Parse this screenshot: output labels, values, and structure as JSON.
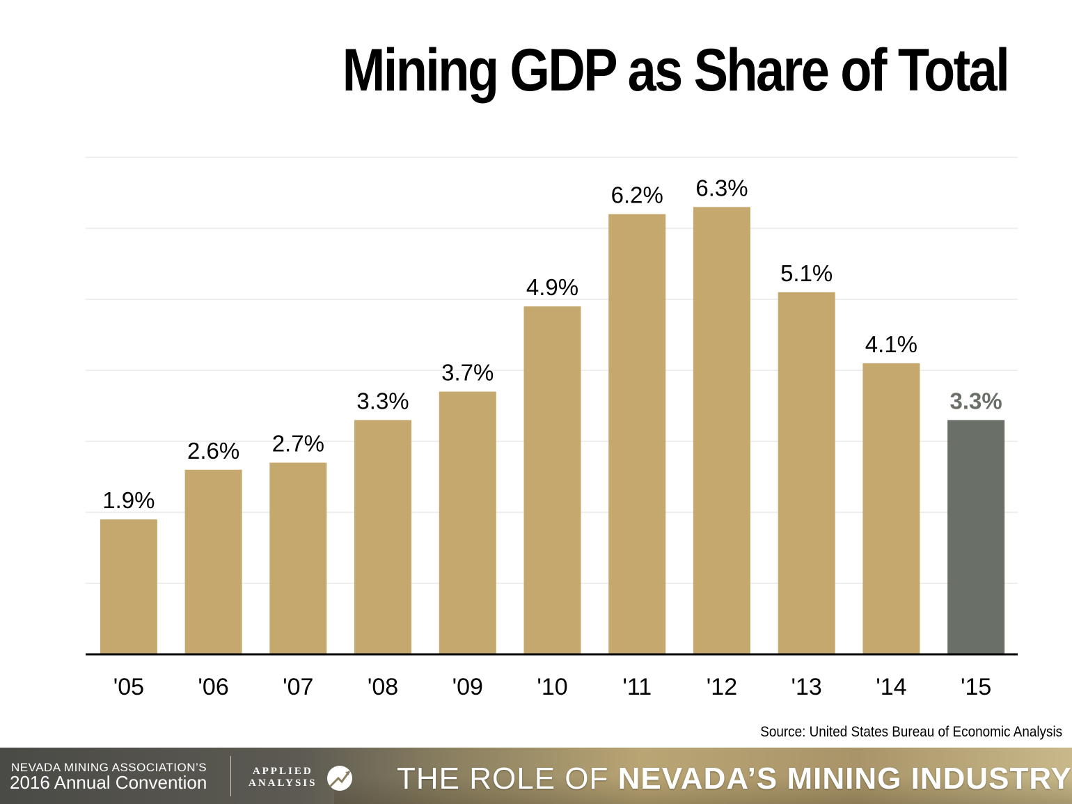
{
  "chart_data": {
    "type": "bar",
    "title": "Mining GDP as Share of Total",
    "categories": [
      "'05",
      "'06",
      "'07",
      "'08",
      "'09",
      "'10",
      "'11",
      "'12",
      "'13",
      "'14",
      "'15"
    ],
    "values": [
      1.9,
      2.6,
      2.7,
      3.3,
      3.7,
      4.9,
      6.2,
      6.3,
      5.1,
      4.1,
      3.3
    ],
    "value_labels": [
      "1.9%",
      "2.6%",
      "2.7%",
      "3.3%",
      "3.7%",
      "4.9%",
      "6.2%",
      "6.3%",
      "5.1%",
      "4.1%",
      "3.3%"
    ],
    "xlabel": "",
    "ylabel": "",
    "ylim": [
      0,
      7
    ],
    "grid": true,
    "bar_color": "#c4a86e",
    "highlight_color": "#6a7068",
    "highlight_index": 10,
    "highlight_label_color": "#6a7068"
  },
  "source": "Source: United States Bureau of Economic Analysis",
  "footer": {
    "association": "NEVADA MINING ASSOCIATION’S",
    "convention": "2016 Annual Convention",
    "logo_line1": "APPLIED",
    "logo_line2": "ANALYSIS",
    "role_light": "THE ROLE OF ",
    "role_heavy": "NEVADA’S MINING INDUSTRY"
  }
}
